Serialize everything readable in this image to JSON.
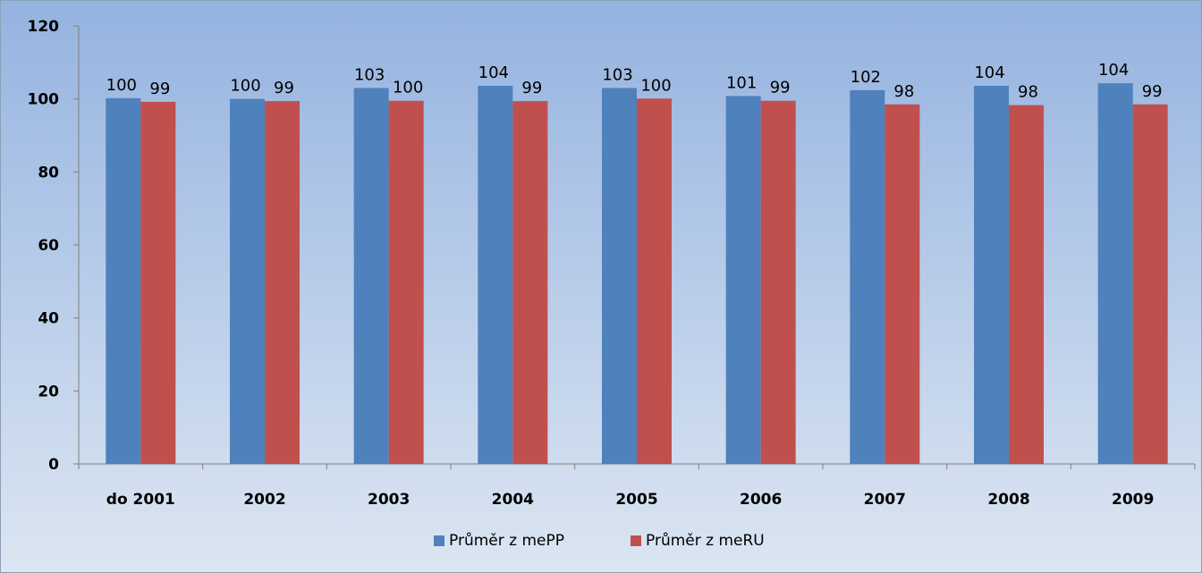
{
  "chart_data": {
    "type": "bar",
    "categories": [
      "do 2001",
      "2002",
      "2003",
      "2004",
      "2005",
      "2006",
      "2007",
      "2008",
      "2009"
    ],
    "series": [
      {
        "name": "Průměr z mePP",
        "color": "#4F81BD",
        "values": [
          100.2,
          100.0,
          103.0,
          103.6,
          103.0,
          100.8,
          102.4,
          103.6,
          104.3
        ]
      },
      {
        "name": "Průměr z meRU",
        "color": "#C0504D",
        "values": [
          99.2,
          99.4,
          99.5,
          99.4,
          100.1,
          99.5,
          98.5,
          98.3,
          98.5
        ]
      }
    ],
    "data_labels": [
      [
        "100",
        "100",
        "103",
        "104",
        "103",
        "101",
        "102",
        "104",
        "104"
      ],
      [
        "99",
        "99",
        "100",
        "99",
        "100",
        "99",
        "98",
        "98",
        "99"
      ]
    ],
    "y_ticks": [
      "0",
      "20",
      "40",
      "60",
      "80",
      "100",
      "120"
    ],
    "ylim": [
      0,
      120
    ],
    "title": "",
    "xlabel": "",
    "ylabel": "",
    "grid": false,
    "legend_position": "bottom",
    "background_gradient": [
      "#95B3E0",
      "#DCE6F2"
    ]
  }
}
